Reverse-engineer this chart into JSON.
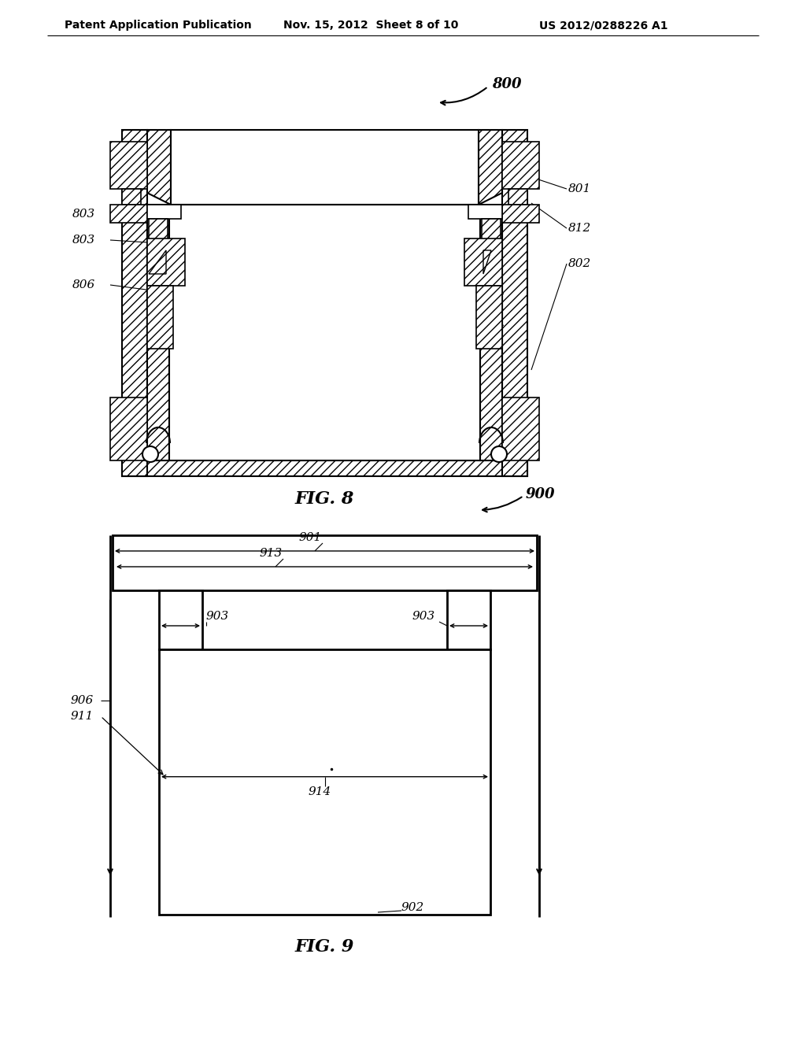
{
  "bg_color": "#ffffff",
  "line_color": "#000000",
  "text_color": "#000000",
  "header_left": "Patent Application Publication",
  "header_mid": "Nov. 15, 2012  Sheet 8 of 10",
  "header_right": "US 2012/0288226 A1",
  "fig8_caption": "FIG. 8",
  "fig9_caption": "FIG. 9",
  "fig8_ref": "800",
  "fig9_ref": "900",
  "fig8_labels": [
    "801",
    "812",
    "802",
    "803",
    "803",
    "806"
  ],
  "fig9_labels": [
    "901",
    "913",
    "903",
    "903",
    "906",
    "911",
    "914",
    "902"
  ]
}
